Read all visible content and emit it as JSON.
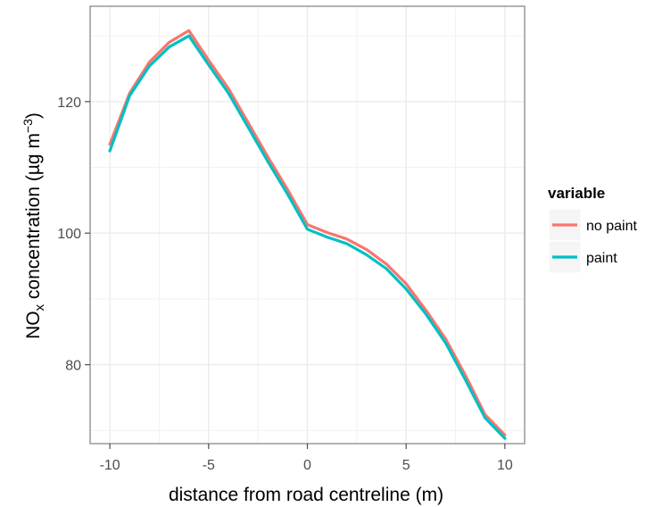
{
  "chart_data": {
    "type": "line",
    "xlabel": "distance from road centreline (m)",
    "ylabel": {
      "main": "NO",
      "subscript": "x",
      "middle": " concentration (µg m",
      "superscript": "−3",
      "end": ")"
    },
    "xlim": [
      -11,
      11
    ],
    "ylim": [
      68,
      134.5
    ],
    "xticks": [
      -10,
      -5,
      0,
      5,
      10
    ],
    "xtick_labels": [
      "-10",
      "-5",
      "0",
      "5",
      "10"
    ],
    "yticks": [
      80,
      100,
      120
    ],
    "ytick_labels": [
      "80",
      "100",
      "120"
    ],
    "grid": true,
    "background": "#ffffff",
    "grid_color": "#ebebeb",
    "legend": {
      "title": "variable",
      "position": "right"
    },
    "x": [
      -10,
      -9,
      -8,
      -7,
      -6,
      -5,
      -4,
      -3,
      -2,
      -1,
      0,
      1,
      2,
      3,
      4,
      5,
      6,
      7,
      8,
      9,
      10
    ],
    "series": [
      {
        "name": "no paint",
        "color": "#f8766d",
        "values": [
          113.5,
          121.3,
          126.0,
          129.0,
          130.8,
          126.3,
          122.0,
          116.8,
          111.6,
          106.6,
          101.3,
          100.1,
          99.1,
          97.5,
          95.3,
          92.3,
          88.3,
          83.9,
          78.4,
          72.4,
          69.3
        ]
      },
      {
        "name": "paint",
        "color": "#00bfc4",
        "values": [
          112.5,
          120.9,
          125.4,
          128.3,
          130.0,
          125.6,
          121.3,
          116.1,
          110.9,
          105.9,
          100.6,
          99.4,
          98.4,
          96.7,
          94.6,
          91.5,
          87.7,
          83.3,
          77.7,
          71.9,
          68.8
        ]
      }
    ]
  }
}
